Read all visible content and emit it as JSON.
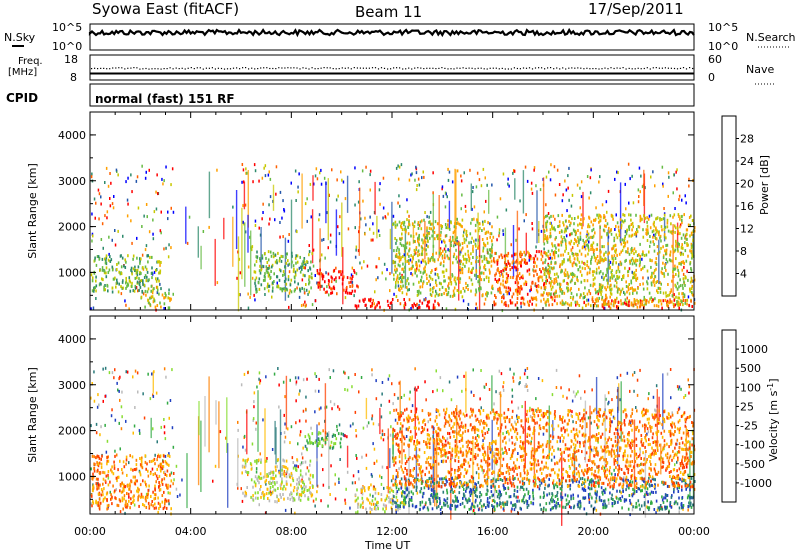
{
  "header": {
    "title": "Syowa East (fitACF)",
    "beam": "Beam 11",
    "date": "17/Sep/2011"
  },
  "strip_panels": {
    "noise": {
      "left_label": "N.Sky",
      "right_label": "N.Search",
      "left_ticks": [
        "10^5",
        "10^0"
      ],
      "right_ticks": [
        "10^5",
        "10^0"
      ]
    },
    "freq": {
      "left_label_1": "Freq.",
      "left_label_2": "[MHz]",
      "right_label": "Nave",
      "left_ticks": [
        "18",
        "8"
      ],
      "right_ticks": [
        "60",
        "0"
      ]
    },
    "cpid": {
      "label": "CPID",
      "text": "normal (fast) 151 RF"
    }
  },
  "chart_data": [
    {
      "type": "heatmap",
      "name": "power",
      "ylabel": "Slant Range [km]",
      "xlabel": "",
      "ylim": [
        180,
        4500
      ],
      "y_ticks": [
        1000,
        2000,
        3000,
        4000
      ],
      "x_ticks": [
        "00:00",
        "04:00",
        "08:00",
        "12:00",
        "16:00",
        "20:00",
        "00:00"
      ],
      "xlim_hours": [
        0,
        24
      ],
      "colorbar": {
        "label": "Power [dB]",
        "ticks": [
          "4",
          "8",
          "12",
          "16",
          "20",
          "24",
          "28"
        ],
        "range": [
          0,
          30
        ],
        "colors": [
          "#0000ff",
          "#2255aa",
          "#2d8a6b",
          "#66bb44",
          "#c8c800",
          "#ffa000",
          "#ff6000",
          "#ff0000"
        ]
      },
      "regions": [
        {
          "t": [
            0.0,
            2.8
          ],
          "r": [
            600,
            1400
          ],
          "level": 3
        },
        {
          "t": [
            2.0,
            3.2
          ],
          "r": [
            250,
            600
          ],
          "level": 4
        },
        {
          "t": [
            6.5,
            8.8
          ],
          "r": [
            600,
            1500
          ],
          "level": 3
        },
        {
          "t": [
            9.0,
            10.5
          ],
          "r": [
            550,
            1100
          ],
          "level": 7
        },
        {
          "t": [
            10.5,
            14.0
          ],
          "r": [
            250,
            450
          ],
          "level": 7
        },
        {
          "t": [
            12.0,
            16.0
          ],
          "r": [
            500,
            2200
          ],
          "level": 4
        },
        {
          "t": [
            16.0,
            18.5
          ],
          "r": [
            300,
            1500
          ],
          "level": 6
        },
        {
          "t": [
            18.0,
            24.0
          ],
          "r": [
            300,
            2300
          ],
          "level": 4
        },
        {
          "t": [
            19.5,
            24.0
          ],
          "r": [
            250,
            450
          ],
          "level": 6
        }
      ]
    },
    {
      "type": "heatmap",
      "name": "velocity",
      "ylabel": "Slant Range [km]",
      "xlabel": "Time UT",
      "ylim": [
        180,
        4500
      ],
      "y_ticks": [
        1000,
        2000,
        3000,
        4000
      ],
      "x_ticks": [
        "00:00",
        "04:00",
        "08:00",
        "12:00",
        "16:00",
        "20:00",
        "00:00"
      ],
      "xlim_hours": [
        0,
        24
      ],
      "colorbar": {
        "label": "Velocity [m s^-1]",
        "ticks": [
          "1000",
          "500",
          "100",
          "25",
          "-25",
          "-100",
          "-500",
          "-1000"
        ],
        "colors": [
          "#2040c0",
          "#2a7a7a",
          "#33aa44",
          "#88dd33",
          "#bbbbbb",
          "#ffbb00",
          "#ff8000",
          "#ff4000",
          "#ff0000"
        ]
      },
      "regions": [
        {
          "t": [
            0.0,
            3.2
          ],
          "r": [
            300,
            1500
          ],
          "level": 6
        },
        {
          "t": [
            6.0,
            9.0
          ],
          "r": [
            500,
            1400
          ],
          "level": 4
        },
        {
          "t": [
            8.5,
            10.0
          ],
          "r": [
            1600,
            2000
          ],
          "level": 2
        },
        {
          "t": [
            10.5,
            12.5
          ],
          "r": [
            250,
            800
          ],
          "level": 4
        },
        {
          "t": [
            12.0,
            24.0
          ],
          "r": [
            300,
            1000
          ],
          "level": 1
        },
        {
          "t": [
            12.0,
            24.0
          ],
          "r": [
            800,
            2500
          ],
          "level": 6
        }
      ]
    }
  ]
}
